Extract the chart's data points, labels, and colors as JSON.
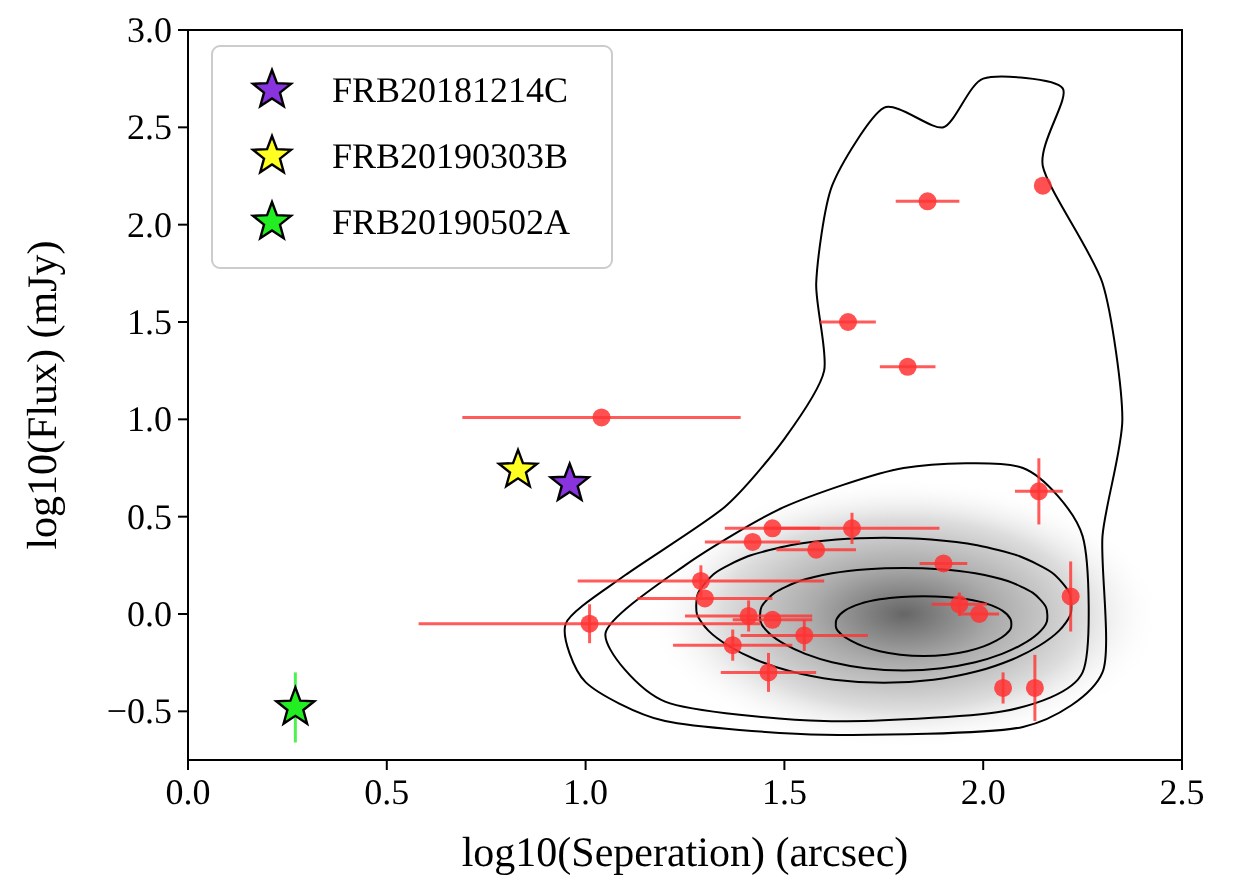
{
  "chart_data": {
    "type": "scatter",
    "xlabel": "log10(Seperation) (arcsec)",
    "ylabel": "log10(Flux) (mJy)",
    "xlim": [
      0,
      2.5
    ],
    "ylim": [
      -0.75,
      3.0
    ],
    "xticks": [
      {
        "value": 0,
        "label": "0.0"
      },
      {
        "value": 0.5,
        "label": "0.5"
      },
      {
        "value": 1,
        "label": "1.0"
      },
      {
        "value": 1.5,
        "label": "1.5"
      },
      {
        "value": 2,
        "label": "2.0"
      },
      {
        "value": 2.5,
        "label": "2.5"
      }
    ],
    "yticks": [
      {
        "value": -0.5,
        "label": "−0.5"
      },
      {
        "value": 0,
        "label": "0.0"
      },
      {
        "value": 0.5,
        "label": "0.5"
      },
      {
        "value": 1,
        "label": "1.0"
      },
      {
        "value": 1.5,
        "label": "1.5"
      },
      {
        "value": 2,
        "label": "2.0"
      },
      {
        "value": 2.5,
        "label": "2.5"
      },
      {
        "value": 3,
        "label": "3.0"
      }
    ],
    "grid": false,
    "legend": "top left",
    "series": [
      {
        "color": "#ff3333",
        "marker": "circle",
        "x": [
          1.86,
          2.15,
          1.66,
          1.81,
          1.04,
          2.14,
          1.47,
          1.67,
          1.42,
          1.58,
          1.9,
          1.29,
          1.3,
          1.94,
          1.99,
          2.22,
          1.41,
          1.47,
          1.55,
          1.37,
          1.46,
          1.01,
          2.05,
          2.13
        ],
        "values": [
          2.12,
          2.2,
          1.5,
          1.27,
          1.01,
          0.63,
          0.44,
          0.44,
          0.37,
          0.33,
          0.26,
          0.17,
          0.08,
          0.05,
          0,
          0.09,
          -0.01,
          -0.03,
          -0.11,
          -0.16,
          -0.3,
          -0.05,
          -0.38,
          -0.38
        ],
        "xerrors": [
          0.08,
          null,
          0.07,
          0.07,
          0.35,
          0.06,
          0.12,
          0.22,
          0.12,
          0.1,
          0.06,
          0.31,
          0.17,
          0.07,
          0.05,
          null,
          0.16,
          0.1,
          0.16,
          0.15,
          0.12,
          0.43,
          null,
          null
        ],
        "errors": [
          null,
          null,
          null,
          null,
          null,
          0.17,
          null,
          0.08,
          null,
          null,
          null,
          0.08,
          null,
          0.06,
          null,
          0.18,
          0.08,
          null,
          0.08,
          0.08,
          0.1,
          0.1,
          0.08,
          0.17
        ]
      },
      {
        "name": "FRB20181214C",
        "color": "#8833dd",
        "marker": "star",
        "x": [
          0.96
        ],
        "values": [
          0.67
        ]
      },
      {
        "name": "FRB20190303B",
        "color": "#ffff22",
        "marker": "star",
        "x": [
          0.83
        ],
        "values": [
          0.74
        ]
      },
      {
        "name": "FRB20190502A",
        "color": "#22ee22",
        "marker": "star",
        "x": [
          0.27
        ],
        "values": [
          -0.48
        ],
        "errors": [
          0.18
        ]
      }
    ]
  }
}
